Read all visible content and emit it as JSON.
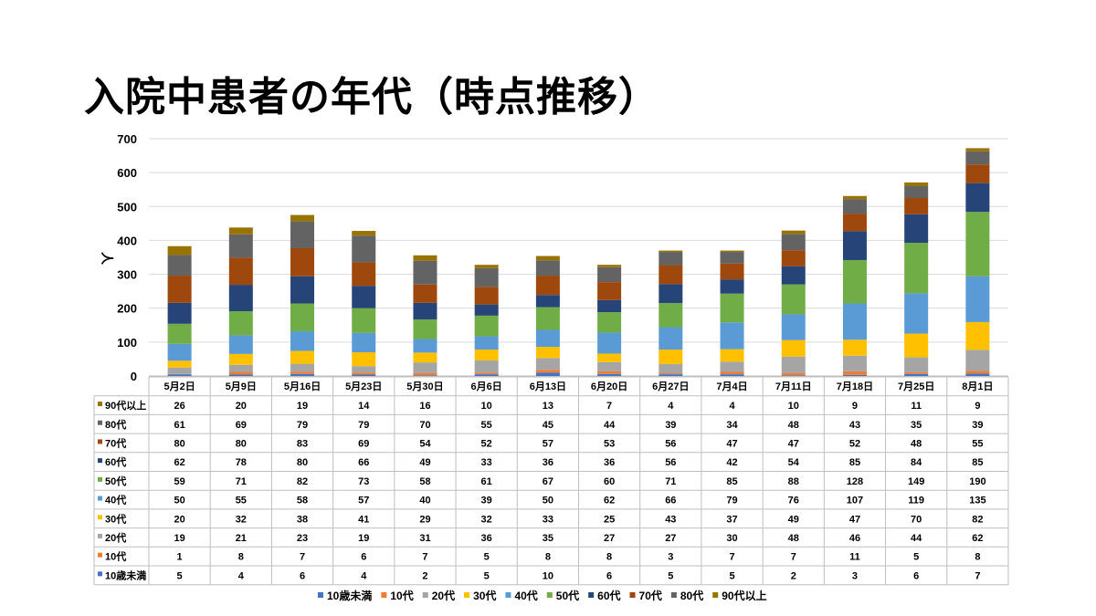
{
  "page": {
    "title": "入院中患者の年代（時点推移）"
  },
  "chart_data": {
    "type": "bar",
    "stacked": true,
    "title": "入院中患者の年代（時点推移）",
    "ylabel": "人",
    "xlabel": "",
    "ylim": [
      0,
      700
    ],
    "yticks": [
      0,
      100,
      200,
      300,
      400,
      500,
      600,
      700
    ],
    "grid": true,
    "legend": "bottom",
    "categories": [
      "5月2日",
      "5月9日",
      "5月16日",
      "5月23日",
      "5月30日",
      "6月6日",
      "6月13日",
      "6月20日",
      "6月27日",
      "7月4日",
      "7月11日",
      "7月18日",
      "7月25日",
      "8月1日"
    ],
    "series": [
      {
        "name": "10歳未満",
        "color": "#4472C4",
        "values": [
          5,
          4,
          6,
          4,
          2,
          5,
          10,
          6,
          5,
          5,
          2,
          3,
          6,
          7
        ]
      },
      {
        "name": "10代",
        "color": "#ED7D31",
        "values": [
          1,
          8,
          7,
          6,
          7,
          5,
          8,
          8,
          3,
          7,
          7,
          11,
          5,
          8
        ]
      },
      {
        "name": "20代",
        "color": "#A5A5A5",
        "values": [
          19,
          21,
          23,
          19,
          31,
          36,
          35,
          27,
          27,
          30,
          48,
          46,
          44,
          62
        ]
      },
      {
        "name": "30代",
        "color": "#FFC000",
        "values": [
          20,
          32,
          38,
          41,
          29,
          32,
          33,
          25,
          43,
          37,
          49,
          47,
          70,
          82
        ]
      },
      {
        "name": "40代",
        "color": "#5B9BD5",
        "values": [
          50,
          55,
          58,
          57,
          40,
          39,
          50,
          62,
          66,
          79,
          76,
          107,
          119,
          135
        ]
      },
      {
        "name": "50代",
        "color": "#70AD47",
        "values": [
          59,
          71,
          82,
          73,
          58,
          61,
          67,
          60,
          71,
          85,
          88,
          128,
          149,
          190
        ]
      },
      {
        "name": "60代",
        "color": "#264478",
        "values": [
          62,
          78,
          80,
          66,
          49,
          33,
          36,
          36,
          56,
          42,
          54,
          85,
          84,
          85
        ]
      },
      {
        "name": "70代",
        "color": "#9E480E",
        "values": [
          80,
          80,
          83,
          69,
          54,
          52,
          57,
          53,
          56,
          47,
          47,
          52,
          48,
          55
        ]
      },
      {
        "name": "80代",
        "color": "#636363",
        "values": [
          61,
          69,
          79,
          79,
          70,
          55,
          45,
          44,
          39,
          34,
          48,
          43,
          35,
          39
        ]
      },
      {
        "name": "90代以上",
        "color": "#997300",
        "values": [
          26,
          20,
          19,
          14,
          16,
          10,
          13,
          7,
          4,
          4,
          10,
          9,
          11,
          9
        ]
      }
    ]
  }
}
